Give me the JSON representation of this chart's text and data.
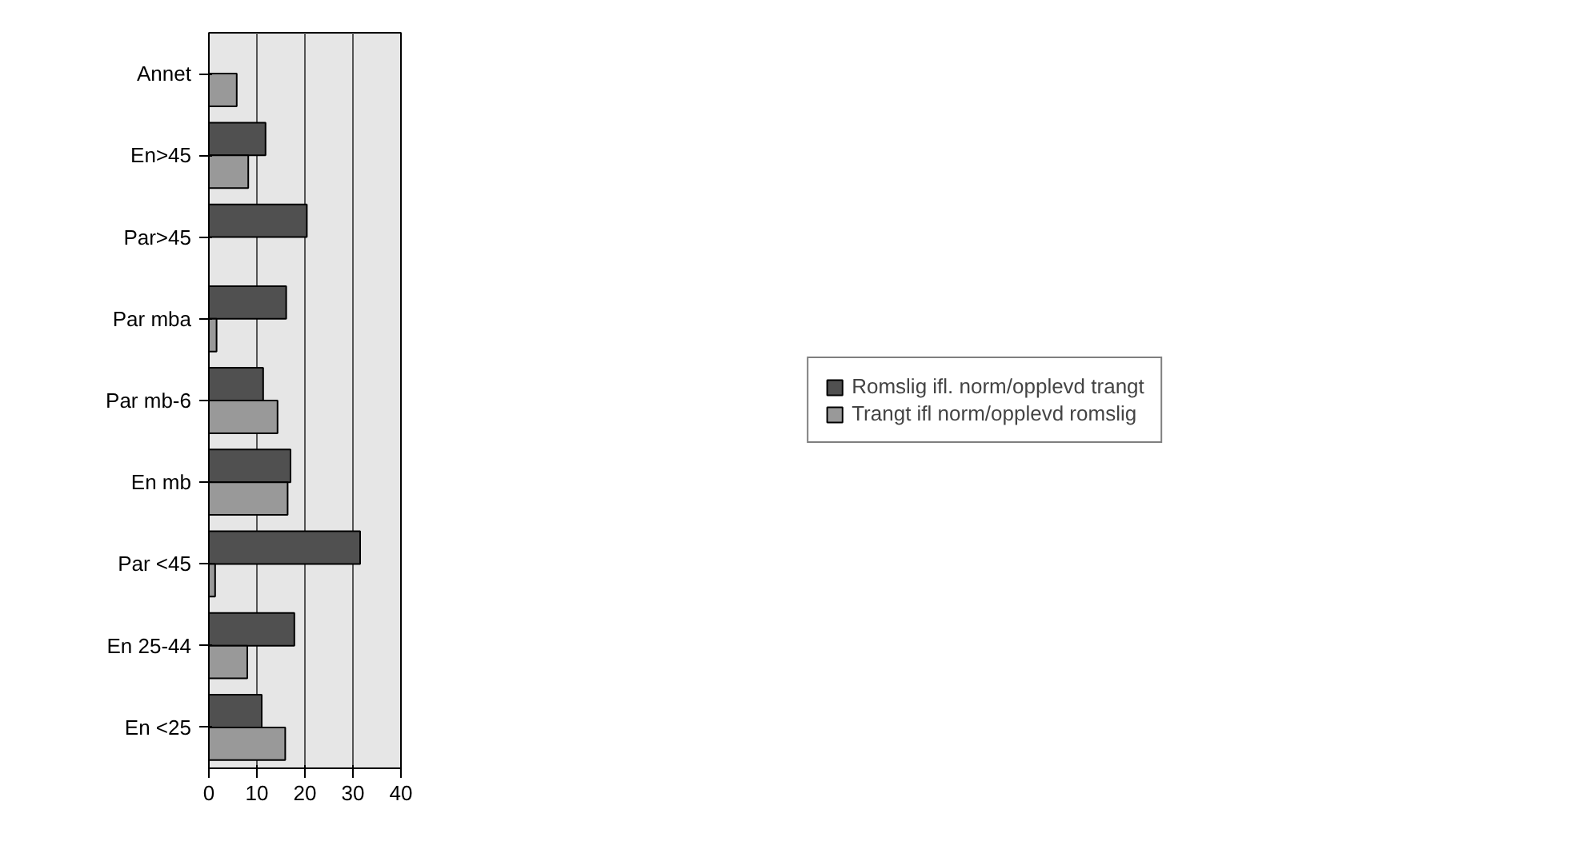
{
  "chart_data": {
    "type": "bar",
    "orientation": "horizontal",
    "categories": [
      "Annet",
      "En>45",
      "Par>45",
      "Par mba",
      "Par mb-6",
      "En mb",
      "Par <45",
      "En 25-44",
      "En <25"
    ],
    "series": [
      {
        "name": "Romslig ifl. norm/opplevd trangt",
        "color": "#505050",
        "values": [
          null,
          11.8,
          20.4,
          16.1,
          11.3,
          17.0,
          31.5,
          17.8,
          11.0
        ]
      },
      {
        "name": "Trangt ifl norm/opplevd romslig",
        "color": "#999999",
        "values": [
          5.8,
          8.2,
          null,
          1.6,
          14.3,
          16.4,
          1.3,
          8.0,
          15.9
        ]
      }
    ],
    "xlim": [
      0,
      40
    ],
    "xticks": [
      0,
      10,
      20,
      30,
      40
    ],
    "grid": "x",
    "legend": "right"
  }
}
